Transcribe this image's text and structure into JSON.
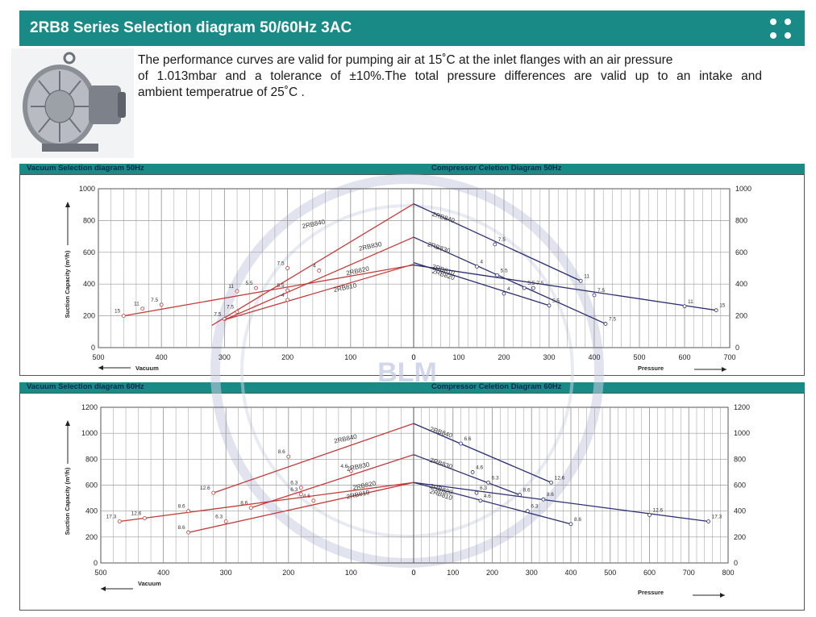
{
  "header": {
    "title": "2RB8 Series Selection diagram 50/60Hz 3AC"
  },
  "intro": {
    "line1": "The performance curves are valid for pumping air at 15˚C at the inlet flanges with an air pressure",
    "line2": "of 1.013mbar and a tolerance of ±10%.The total pressure differences are valid up to an intake and",
    "line3": "ambient temperatrue of 25˚C ."
  },
  "watermark": "BLM",
  "colors": {
    "teal": "#1a8a87",
    "vacuum_curve": "#c23b3b",
    "pressure_curve": "#2b2f6e",
    "grid": "#9a9a9a"
  },
  "chart_data": [
    {
      "id": "50hz",
      "type": "line",
      "ylabel": "Suction Capacity (m³/h)",
      "ylim": [
        0,
        1000
      ],
      "yticks": [
        0,
        200,
        400,
        600,
        800,
        1000
      ],
      "vacuum": {
        "title": "Vacuum Selection diagram 50Hz",
        "xlabel": "Vacuum",
        "xlim": [
          500,
          0
        ],
        "xticks": [
          500,
          400,
          300,
          200,
          100,
          0
        ],
        "series": [
          {
            "name": "2RB840",
            "points": [
              [
                320,
                140
              ],
              [
                0,
                905
              ]
            ],
            "markers": [
              [
                200,
                500,
                "7.5"
              ],
              [
                280,
                355,
                "11"
              ]
            ],
            "label_at": [
              140,
              780
            ]
          },
          {
            "name": "2RB830",
            "points": [
              [
                300,
                175
              ],
              [
                0,
                695
              ]
            ],
            "markers": [
              [
                150,
                485,
                "4"
              ],
              [
                200,
                360,
                "5.5"
              ],
              [
                300,
                180,
                "7.5"
              ]
            ],
            "label_at": [
              50,
              640
            ]
          },
          {
            "name": "2RB820",
            "points": [
              [
                300,
                175
              ],
              [
                0,
                525
              ]
            ],
            "markers": [
              [
                200,
                300,
                "4"
              ],
              [
                250,
                375,
                "5.5"
              ],
              [
                280,
                225,
                "7.5"
              ]
            ],
            "label_at": [
              70,
              485
            ]
          },
          {
            "name": "2RB810",
            "points": [
              [
                460,
                200
              ],
              [
                0,
                520
              ]
            ],
            "markers": [
              [
                460,
                200,
                "15"
              ],
              [
                430,
                245,
                "11"
              ],
              [
                400,
                270,
                "7.5"
              ]
            ],
            "label_at": [
              90,
              380
            ]
          }
        ]
      },
      "pressure": {
        "title": "Compressor Celetion Diagram 50Hz",
        "xlabel": "Pressure",
        "xlim": [
          0,
          700
        ],
        "xticks": [
          0,
          100,
          200,
          300,
          400,
          500,
          600,
          700
        ],
        "series": [
          {
            "name": "2RB840",
            "points": [
              [
                0,
                905
              ],
              [
                370,
                420
              ]
            ],
            "markers": [
              [
                180,
                650,
                "7.5"
              ],
              [
                370,
                420,
                "11"
              ]
            ],
            "label_at": [
              40,
              830
            ]
          },
          {
            "name": "2RB830",
            "points": [
              [
                0,
                695
              ],
              [
                425,
                150
              ]
            ],
            "markers": [
              [
                140,
                510,
                "4"
              ],
              [
                185,
                455,
                "5.5"
              ],
              [
                425,
                150,
                "7.5"
              ]
            ],
            "label_at": [
              30,
              640
            ]
          },
          {
            "name": "2RB820",
            "points": [
              [
                0,
                535
              ],
              [
                300,
                265
              ]
            ],
            "markers": [
              [
                200,
                340,
                "4"
              ],
              [
                245,
                375,
                "5.5"
              ],
              [
                300,
                265,
                "5.5"
              ]
            ],
            "label_at": [
              40,
              470
            ]
          },
          {
            "name": "2RB810",
            "points": [
              [
                0,
                520
              ],
              [
                670,
                235
              ]
            ],
            "markers": [
              [
                265,
                375,
                "7.5"
              ],
              [
                400,
                330,
                "7.5"
              ],
              [
                600,
                260,
                "11"
              ],
              [
                670,
                235,
                "15"
              ]
            ],
            "label_at": [
              40,
              500
            ]
          }
        ]
      }
    },
    {
      "id": "60hz",
      "type": "line",
      "ylabel": "Suction Capacity (m³/h)",
      "ylim": [
        0,
        1200
      ],
      "yticks": [
        0,
        200,
        400,
        600,
        800,
        1000,
        1200
      ],
      "vacuum": {
        "title": "Vacuum Selection diagram 60Hz",
        "xlabel": "Vacuum",
        "xlim": [
          500,
          0
        ],
        "xticks": [
          500,
          400,
          300,
          200,
          100,
          0
        ],
        "series": [
          {
            "name": "2RB840",
            "points": [
              [
                320,
                540
              ],
              [
                0,
                1075
              ]
            ],
            "markers": [
              [
                320,
                540,
                "12.6"
              ],
              [
                200,
                820,
                "8.6"
              ]
            ],
            "label_at": [
              90,
              960
            ]
          },
          {
            "name": "2RB830",
            "points": [
              [
                260,
                425
              ],
              [
                0,
                835
              ]
            ],
            "markers": [
              [
                260,
                425,
                "8.6"
              ],
              [
                180,
                580,
                "6.3"
              ],
              [
                100,
                710,
                "4.6"
              ]
            ],
            "label_at": [
              70,
              745
            ]
          },
          {
            "name": "2RB820",
            "points": [
              [
                360,
                235
              ],
              [
                0,
                620
              ]
            ],
            "markers": [
              [
                360,
                235,
                "8.6"
              ],
              [
                300,
                320,
                "6.3"
              ],
              [
                180,
                530,
                "6.3"
              ],
              [
                160,
                480,
                "4.6"
              ]
            ],
            "label_at": [
              60,
              600
            ]
          },
          {
            "name": "2RB810",
            "points": [
              [
                470,
                320
              ],
              [
                0,
                620
              ]
            ],
            "markers": [
              [
                470,
                320,
                "17.3"
              ],
              [
                430,
                345,
                "12.6"
              ],
              [
                360,
                400,
                "8.6"
              ]
            ],
            "label_at": [
              70,
              530
            ]
          }
        ]
      },
      "pressure": {
        "title": "Compressor Celetion Diagram 60Hz",
        "xlabel": "Pressure",
        "xlim": [
          0,
          800
        ],
        "xticks": [
          0,
          100,
          200,
          300,
          400,
          500,
          600,
          700,
          800
        ],
        "series": [
          {
            "name": "2RB840",
            "points": [
              [
                0,
                1075
              ],
              [
                350,
                620
              ]
            ],
            "markers": [
              [
                120,
                920,
                "6.6"
              ],
              [
                350,
                620,
                "12.6"
              ]
            ],
            "label_at": [
              40,
              1020
            ]
          },
          {
            "name": "2RB830",
            "points": [
              [
                0,
                835
              ],
              [
                270,
                525
              ]
            ],
            "markers": [
              [
                150,
                700,
                "4.6"
              ],
              [
                190,
                620,
                "6.3"
              ],
              [
                270,
                525,
                "8.6"
              ]
            ],
            "label_at": [
              40,
              780
            ]
          },
          {
            "name": "2RB820",
            "points": [
              [
                0,
                620
              ],
              [
                400,
                300
              ]
            ],
            "markers": [
              [
                160,
                540,
                "6.3"
              ],
              [
                170,
                480,
                "4.6"
              ],
              [
                290,
                400,
                "6.3"
              ],
              [
                400,
                300,
                "8.6"
              ]
            ],
            "label_at": [
              40,
              580
            ]
          },
          {
            "name": "2RB810",
            "points": [
              [
                0,
                620
              ],
              [
                750,
                320
              ]
            ],
            "markers": [
              [
                330,
                490,
                "8.6"
              ],
              [
                600,
                370,
                "12.6"
              ],
              [
                750,
                320,
                "17.3"
              ]
            ],
            "label_at": [
              40,
              540
            ]
          }
        ]
      }
    }
  ]
}
